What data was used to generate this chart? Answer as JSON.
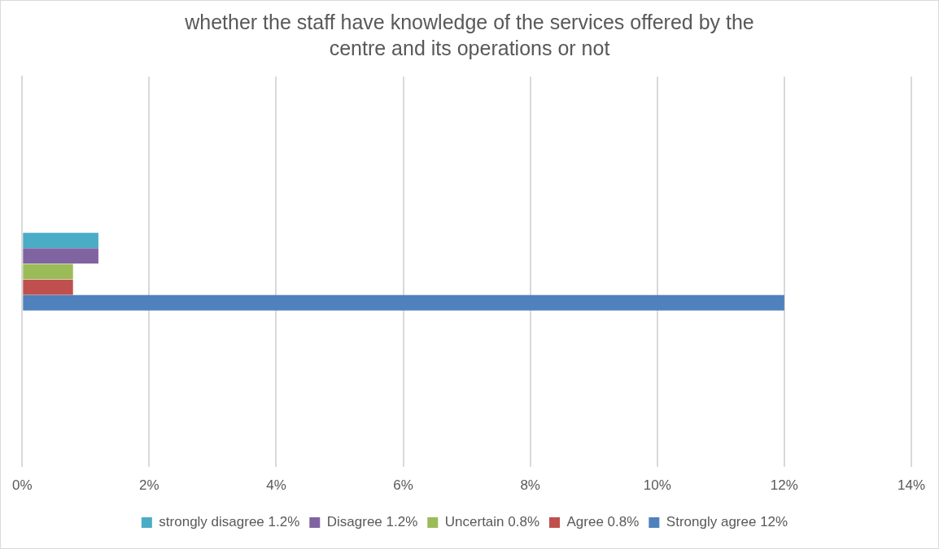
{
  "chart_data": {
    "type": "bar",
    "orientation": "horizontal",
    "title": "whether the staff have knowledge of the services offered by the centre and its operations or not",
    "categories": [
      null
    ],
    "series": [
      {
        "name": "strongly disagree 1.2%",
        "color": "#4bacc6",
        "values": [
          1.2
        ]
      },
      {
        "name": "Disagree 1.2%",
        "color": "#8064a2",
        "values": [
          1.2
        ]
      },
      {
        "name": "Uncertain 0.8%",
        "color": "#9bbb59",
        "values": [
          0.8
        ]
      },
      {
        "name": "Agree 0.8%",
        "color": "#c0504d",
        "values": [
          0.8
        ]
      },
      {
        "name": "Strongly agree 12%",
        "color": "#4f81bd",
        "values": [
          12
        ]
      }
    ],
    "xlim": [
      0,
      14
    ],
    "xticks": [
      {
        "value": 0,
        "label": "0%"
      },
      {
        "value": 2,
        "label": "2%"
      },
      {
        "value": 4,
        "label": "4%"
      },
      {
        "value": 6,
        "label": "6%"
      },
      {
        "value": 8,
        "label": "8%"
      },
      {
        "value": 10,
        "label": "10%"
      },
      {
        "value": 12,
        "label": "12%"
      },
      {
        "value": 14,
        "label": "14%"
      }
    ],
    "grid": "x",
    "legend": "bottom"
  }
}
